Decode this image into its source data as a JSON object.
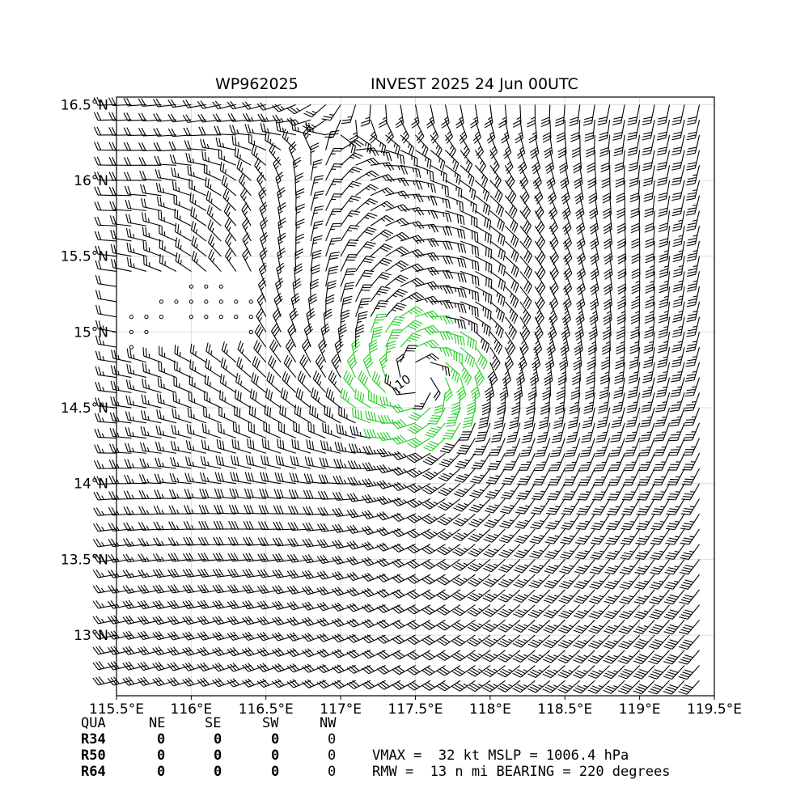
{
  "chart_data": {
    "type": "wind-barb-map",
    "title_left": "WP962025",
    "title_right": "INVEST 2025 24 Jun 00UTC",
    "xlim": [
      115.5,
      119.5
    ],
    "ylim": [
      12.6,
      16.55
    ],
    "xticks": [
      {
        "v": 115.5,
        "label": "115.5°E"
      },
      {
        "v": 116.0,
        "label": "116°E"
      },
      {
        "v": 116.5,
        "label": "116.5°E"
      },
      {
        "v": 117.0,
        "label": "117°E"
      },
      {
        "v": 117.5,
        "label": "117.5°E"
      },
      {
        "v": 118.0,
        "label": "118°E"
      },
      {
        "v": 118.5,
        "label": "118.5°E"
      },
      {
        "v": 119.0,
        "label": "119°E"
      },
      {
        "v": 119.5,
        "label": "119.5°E"
      }
    ],
    "yticks": [
      {
        "v": 16.5,
        "label": "16.5°N"
      },
      {
        "v": 16.0,
        "label": "16°N"
      },
      {
        "v": 15.5,
        "label": "15.5°N"
      },
      {
        "v": 15.0,
        "label": "15°N"
      },
      {
        "v": 14.5,
        "label": "14.5°N"
      },
      {
        "v": 14.0,
        "label": "14°N"
      },
      {
        "v": 13.5,
        "label": "13.5°N"
      },
      {
        "v": 13.0,
        "label": "13°N"
      }
    ],
    "grid": true,
    "center": {
      "lon": 117.52,
      "lat": 14.68
    },
    "center_label": "10",
    "vmax_kt": 32,
    "mslp_hpa": 1006.4,
    "rmw_nmi": 13,
    "bearing_deg": 220,
    "barb_colors": {
      "normal": "#000000",
      "above_threshold": "#22cc22"
    },
    "calm_dots": [
      [
        116.0,
        15.3
      ],
      [
        116.1,
        15.3
      ],
      [
        116.2,
        15.3
      ],
      [
        115.8,
        15.2
      ],
      [
        115.9,
        15.2
      ],
      [
        116.0,
        15.2
      ],
      [
        116.1,
        15.2
      ],
      [
        116.2,
        15.2
      ],
      [
        116.3,
        15.2
      ],
      [
        116.4,
        15.2
      ],
      [
        115.6,
        15.1
      ],
      [
        115.7,
        15.1
      ],
      [
        115.8,
        15.1
      ],
      [
        116.0,
        15.1
      ],
      [
        116.1,
        15.1
      ],
      [
        116.2,
        15.1
      ],
      [
        116.3,
        15.1
      ],
      [
        116.4,
        15.1
      ],
      [
        115.6,
        15.0
      ],
      [
        115.7,
        15.0
      ],
      [
        116.4,
        15.0
      ],
      [
        115.6,
        14.9
      ]
    ]
  },
  "table": {
    "header": [
      "QUA",
      "NE",
      "SE",
      "SW",
      "NW"
    ],
    "rows": [
      {
        "label": "R34",
        "values": [
          "0",
          "0",
          "0",
          "0"
        ]
      },
      {
        "label": "R50",
        "values": [
          "0",
          "0",
          "0",
          "0"
        ]
      },
      {
        "label": "R64",
        "values": [
          "0",
          "0",
          "0",
          "0"
        ]
      }
    ],
    "summary_line1": "VMAX =  32 kt MSLP = 1006.4 hPa",
    "summary_line2": "RMW =  13 n mi BEARING = 220 degrees"
  }
}
